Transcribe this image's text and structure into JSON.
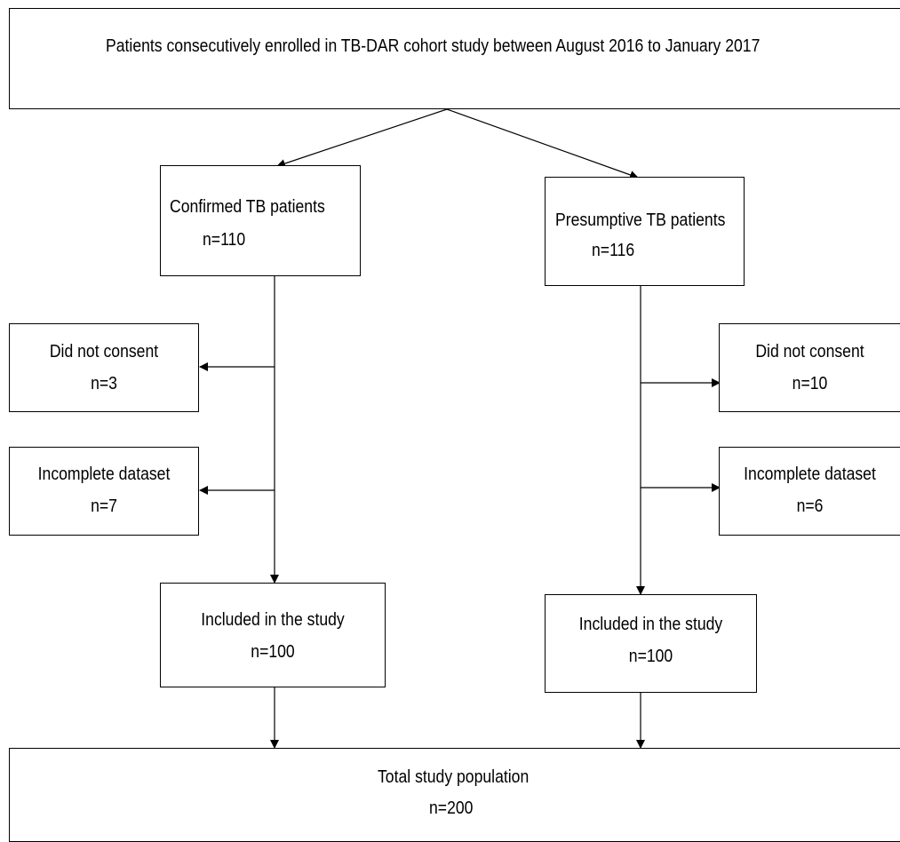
{
  "top": {
    "text": "Patients consecutively enrolled in TB-DAR cohort study between August 2016 to January 2017"
  },
  "confirmed": {
    "label": "Confirmed TB patients",
    "count": "n=110",
    "excluded_consent": {
      "label": "Did not consent",
      "count": "n=3"
    },
    "excluded_incomplete": {
      "label": "Incomplete dataset",
      "count": "n=7"
    },
    "included": {
      "label": "Included in the study",
      "count": "n=100"
    }
  },
  "presumptive": {
    "label": "Presumptive TB patients",
    "count": "n=116",
    "excluded_consent": {
      "label": "Did not consent",
      "count": "n=10"
    },
    "excluded_incomplete": {
      "label": "Incomplete dataset",
      "count": "n=6"
    },
    "included": {
      "label": "Included in the study",
      "count": "n=100"
    }
  },
  "total": {
    "label": "Total study population",
    "count": "n=200"
  }
}
